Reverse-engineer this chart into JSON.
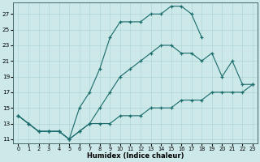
{
  "xlabel": "Humidex (Indice chaleur)",
  "xlim": [
    -0.5,
    23.5
  ],
  "ylim": [
    10.5,
    28.5
  ],
  "xticks": [
    0,
    1,
    2,
    3,
    4,
    5,
    6,
    7,
    8,
    9,
    10,
    11,
    12,
    13,
    14,
    15,
    16,
    17,
    18,
    19,
    20,
    21,
    22,
    23
  ],
  "yticks": [
    11,
    13,
    15,
    17,
    19,
    21,
    23,
    25,
    27
  ],
  "bg_color": "#cce8e8",
  "grid_color": "#b0d8d8",
  "line_color": "#1a6b6b",
  "lines": [
    {
      "x": [
        0,
        1,
        2,
        3,
        4,
        5,
        6,
        7,
        8,
        9,
        10,
        11,
        12,
        13,
        14,
        15,
        16,
        17,
        18
      ],
      "y": [
        14,
        13,
        12,
        12,
        12,
        11,
        15,
        17,
        20,
        24,
        26,
        26,
        26,
        27,
        27,
        28,
        28,
        27,
        24
      ]
    },
    {
      "x": [
        0,
        1,
        2,
        3,
        4,
        5,
        6,
        7,
        8,
        9,
        10,
        11,
        12,
        13,
        14,
        15,
        16,
        17,
        18,
        19,
        20,
        21,
        22,
        23
      ],
      "y": [
        14,
        13,
        12,
        12,
        12,
        11,
        12,
        13,
        15,
        17,
        19,
        20,
        21,
        22,
        23,
        23,
        22,
        22,
        21,
        22,
        19,
        21,
        18,
        18
      ]
    },
    {
      "x": [
        0,
        1,
        2,
        3,
        4,
        5,
        6,
        7,
        8,
        9,
        10,
        11,
        12,
        13,
        14,
        15,
        16,
        17,
        18,
        19,
        20,
        21,
        22,
        23
      ],
      "y": [
        14,
        13,
        12,
        12,
        12,
        11,
        12,
        13,
        13,
        13,
        14,
        14,
        14,
        15,
        15,
        15,
        16,
        16,
        16,
        17,
        17,
        17,
        17,
        18
      ]
    }
  ]
}
